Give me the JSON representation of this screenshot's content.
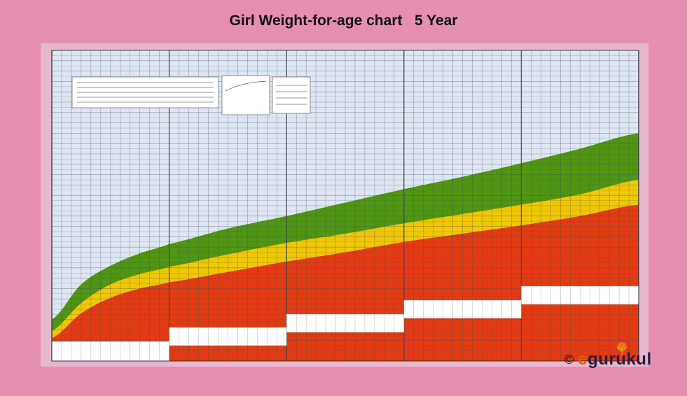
{
  "title": "Girl Weight-for-age chart   5 Year",
  "copyright_symbol": "©",
  "brand": {
    "e": "e",
    "rest": "gurukul",
    "icon": "tree-icon"
  },
  "colors": {
    "background": "#e48fb0",
    "plot_background": "#dde6f2",
    "grid": "#4a4a4a",
    "red_zone": "#e23a12",
    "yellow_zone": "#efc706",
    "green_zone": "#4e9614",
    "age_boxes": "#ffffff"
  },
  "chart_data": {
    "type": "area",
    "title": "Girl Weight-for-age chart   5 Year",
    "xlabel": "",
    "ylabel": "",
    "x_unit": "months",
    "xlim": [
      0,
      60
    ],
    "ylim": [
      0,
      30
    ],
    "grid": true,
    "x": [
      0,
      3,
      6,
      9,
      12,
      18,
      24,
      30,
      36,
      42,
      48,
      54,
      60
    ],
    "series": [
      {
        "zone": "red",
        "values": [
          2.2,
          4.6,
          6.1,
          7.0,
          7.6,
          8.6,
          9.6,
          10.5,
          11.5,
          12.3,
          13.1,
          14.0,
          15.1
        ]
      },
      {
        "zone": "yellow",
        "values": [
          2.9,
          5.6,
          7.4,
          8.4,
          9.1,
          10.3,
          11.4,
          12.3,
          13.3,
          14.2,
          15.1,
          16.1,
          17.5
        ]
      },
      {
        "zone": "green",
        "values": [
          4.0,
          7.4,
          9.2,
          10.4,
          11.3,
          12.8,
          14.0,
          15.3,
          16.6,
          17.8,
          19.1,
          20.5,
          22.0
        ]
      }
    ]
  }
}
